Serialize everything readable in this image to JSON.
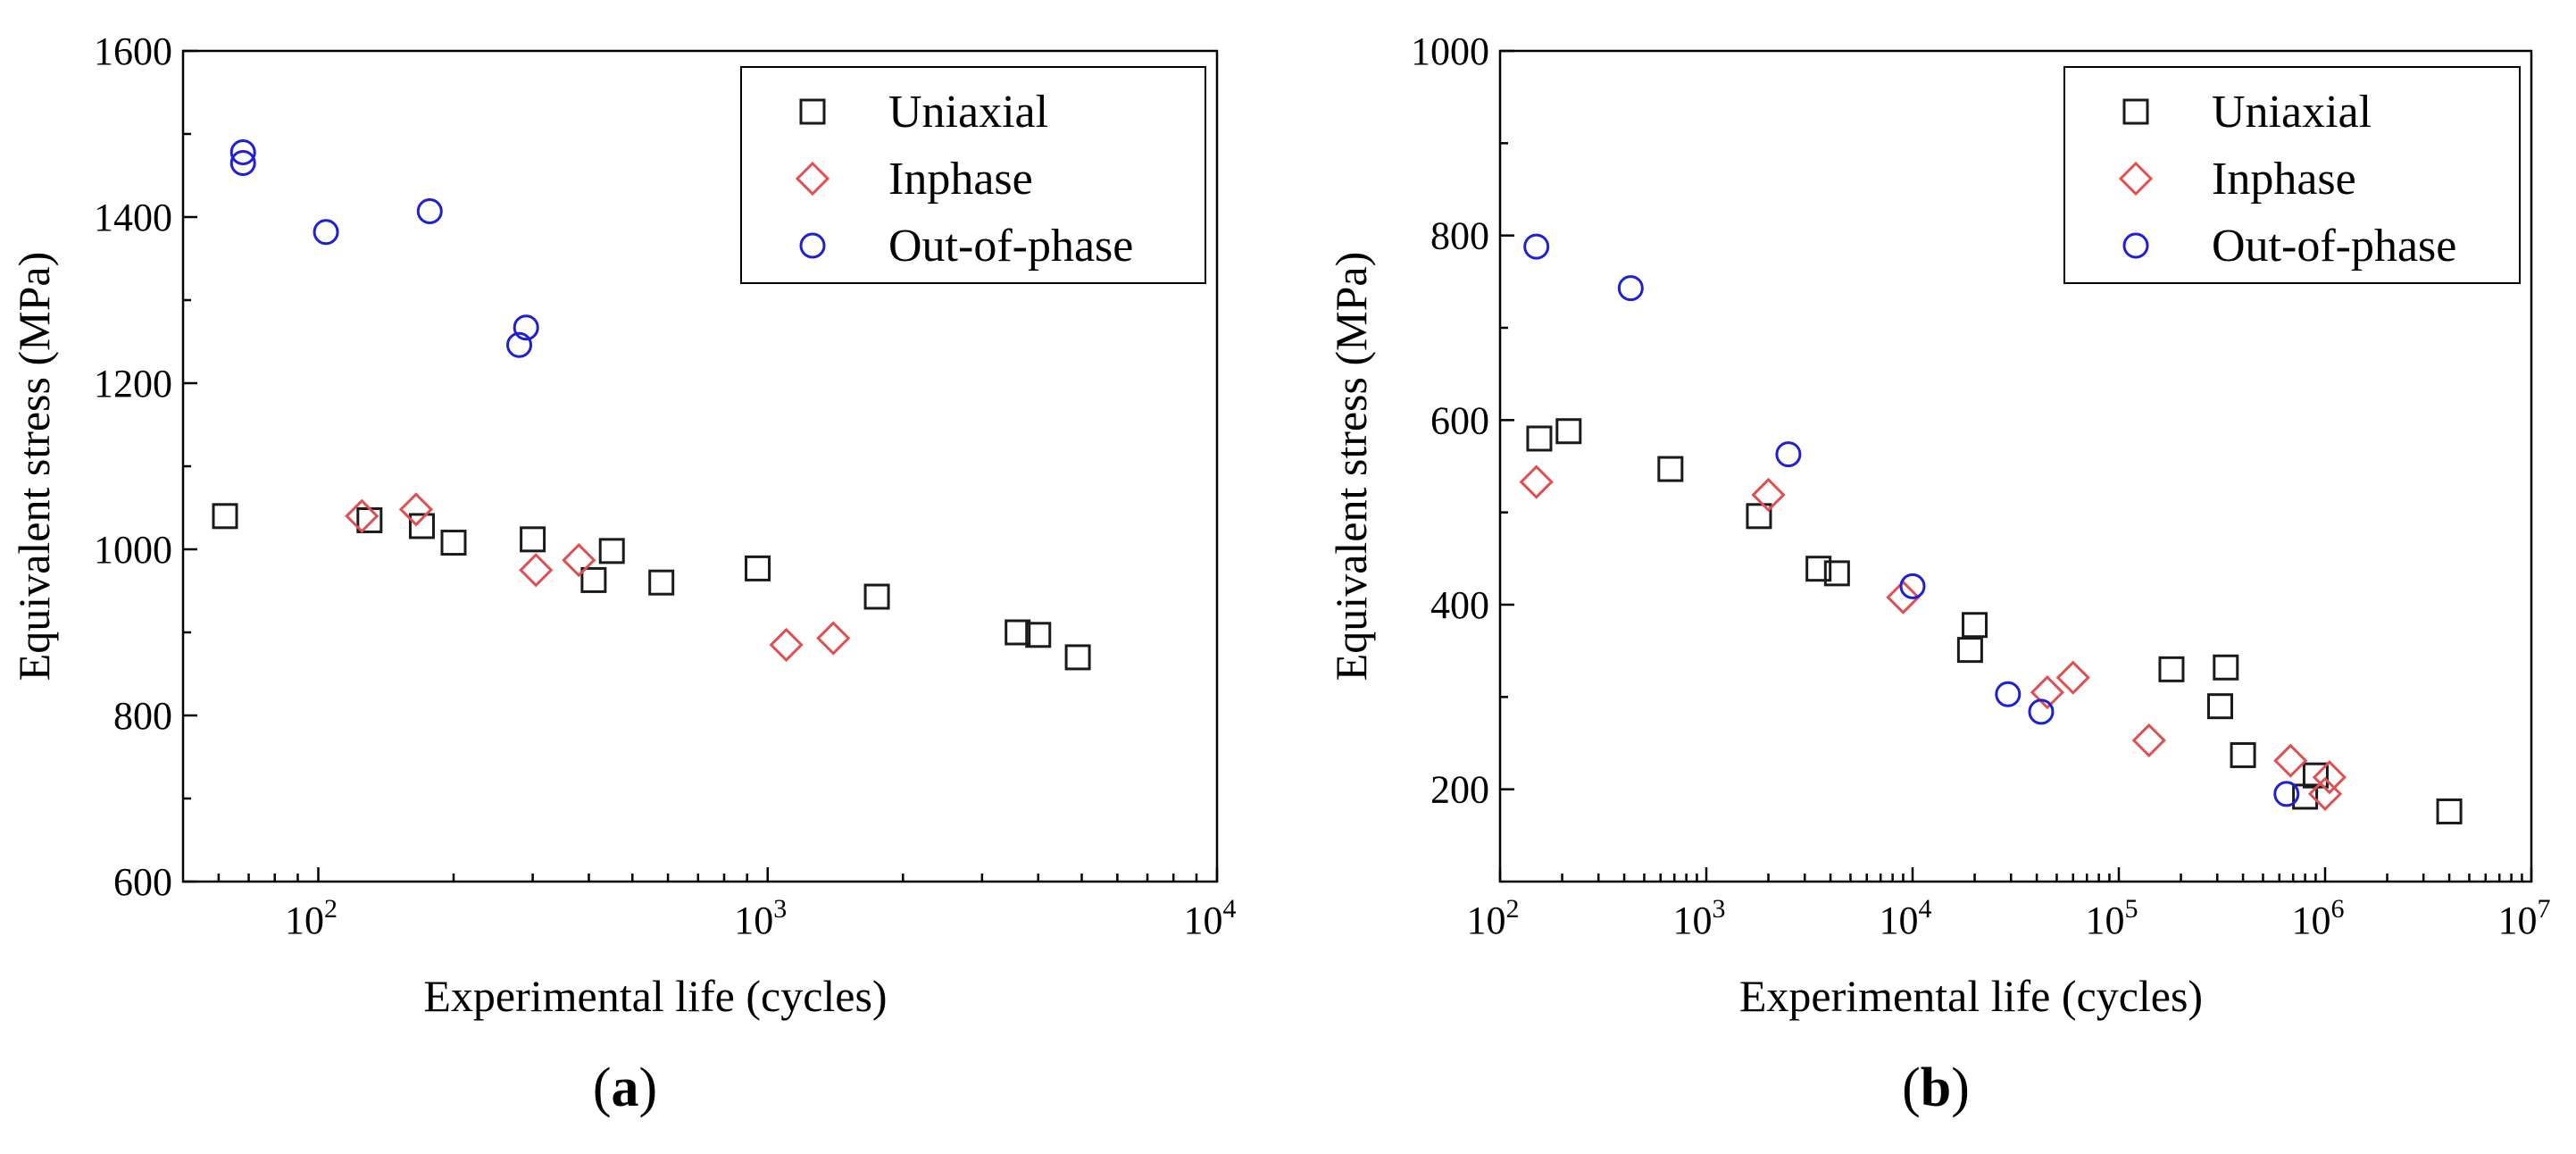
{
  "colors": {
    "uniaxial": "#1a1a1a",
    "inphase": "#e05050",
    "outofphase": "#1f1fd6"
  },
  "chart_data": [
    {
      "type": "scatter",
      "panel_label": {
        "open": "(",
        "letter": "a",
        "close": ")"
      },
      "xlabel": "Experimental life  (cycles)",
      "ylabel": "Equivalent stress  (MPa)",
      "xscale": "log",
      "xlim": [
        50,
        10000
      ],
      "ylim": [
        600,
        1600
      ],
      "x_ticks": [
        100,
        1000,
        10000
      ],
      "y_ticks": [
        600,
        800,
        1000,
        1200,
        1400,
        1600
      ],
      "legend_position": "top-right",
      "series": [
        {
          "name": "Uniaxial",
          "marker": "square",
          "x": [
            62,
            130,
            170,
            200,
            300,
            410,
            450,
            580,
            950,
            1750,
            3600,
            4000,
            4900
          ],
          "y": [
            1040,
            1035,
            1028,
            1008,
            1012,
            963,
            998,
            960,
            977,
            943,
            900,
            897,
            870
          ]
        },
        {
          "name": "Inphase",
          "marker": "diamond",
          "x": [
            125,
            165,
            305,
            380,
            1100,
            1400
          ],
          "y": [
            1040,
            1048,
            975,
            987,
            885,
            893
          ]
        },
        {
          "name": "Out-of-phase",
          "marker": "circle",
          "x": [
            68,
            68,
            104,
            177,
            280,
            290
          ],
          "y": [
            1478,
            1465,
            1382,
            1407,
            1246,
            1267
          ]
        }
      ]
    },
    {
      "type": "scatter",
      "panel_label": {
        "open": "(",
        "letter": "b",
        "close": ")"
      },
      "xlabel": "Experimental life  (cycles)",
      "ylabel": "Equivalent stress  (MPa)",
      "xscale": "log",
      "xlim": [
        100,
        10000000
      ],
      "ylim": [
        100,
        1000
      ],
      "x_ticks": [
        100,
        1000,
        10000,
        100000,
        1000000,
        10000000
      ],
      "y_ticks": [
        200,
        400,
        600,
        800,
        1000
      ],
      "legend_position": "top-right",
      "series": [
        {
          "name": "Uniaxial",
          "marker": "square",
          "x": [
            155,
            215,
            670,
            1800,
            3500,
            4300,
            19000,
            20000,
            180000,
            330000,
            310000,
            400000,
            800000,
            900000,
            4000000
          ],
          "y": [
            580,
            588,
            547,
            496,
            439,
            434,
            351,
            378,
            330,
            332,
            290,
            237,
            192,
            215,
            176
          ]
        },
        {
          "name": "Inphase",
          "marker": "diamond",
          "x": [
            150,
            2000,
            9000,
            45000,
            60000,
            140000,
            680000,
            1000000,
            1050000
          ],
          "y": [
            533,
            519,
            408,
            305,
            321,
            253,
            231,
            195,
            213
          ]
        },
        {
          "name": "Out-of-phase",
          "marker": "circle",
          "x": [
            150,
            430,
            2500,
            10000,
            29000,
            42000,
            650000
          ],
          "y": [
            788,
            743,
            563,
            420,
            303,
            284,
            195
          ]
        }
      ]
    }
  ]
}
